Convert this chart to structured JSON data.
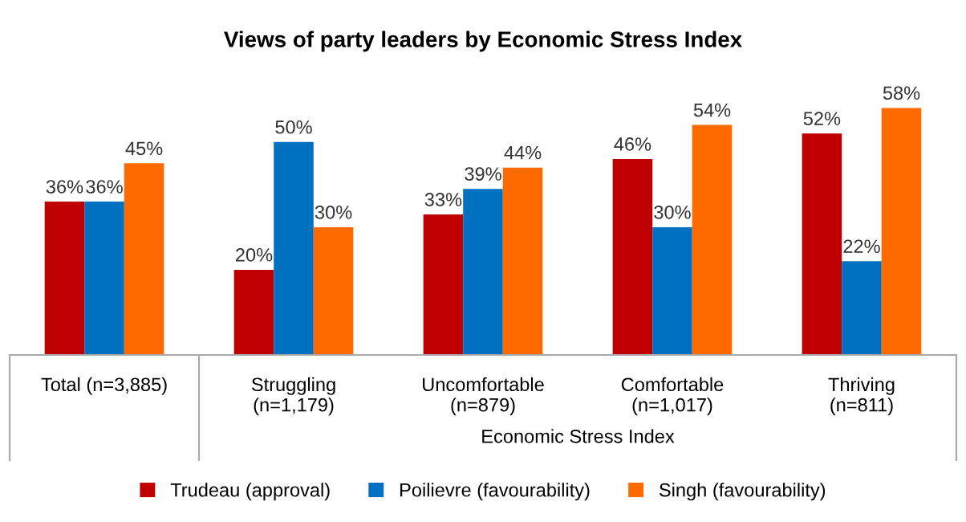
{
  "chart_data": {
    "type": "bar",
    "title": "Views of party leaders by Economic Stress Index",
    "categories": [
      "Total (n=3,885)",
      "Struggling\n(n=1,179)",
      "Uncomfortable\n(n=879)",
      "Comfortable\n(n=1,017)",
      "Thriving\n(n=811)"
    ],
    "series": [
      {
        "name": "Trudeau (approval)",
        "color": "#c00000",
        "values": [
          36,
          20,
          33,
          46,
          52
        ],
        "value_labels": [
          "36%",
          "20%",
          "33%",
          "46%",
          "52%"
        ]
      },
      {
        "name": "Poilievre (favourability)",
        "color": "#0070c0",
        "values": [
          36,
          50,
          39,
          30,
          22
        ],
        "value_labels": [
          "36%",
          "50%",
          "39%",
          "30%",
          "22%"
        ]
      },
      {
        "name": "Singh (favourability)",
        "color": "#ff6a00",
        "values": [
          45,
          30,
          44,
          54,
          58
        ],
        "value_labels": [
          "45%",
          "30%",
          "44%",
          "54%",
          "58%"
        ]
      }
    ],
    "annotations": [
      "Economic Stress Index"
    ],
    "legend": "bottom",
    "grid": false
  }
}
